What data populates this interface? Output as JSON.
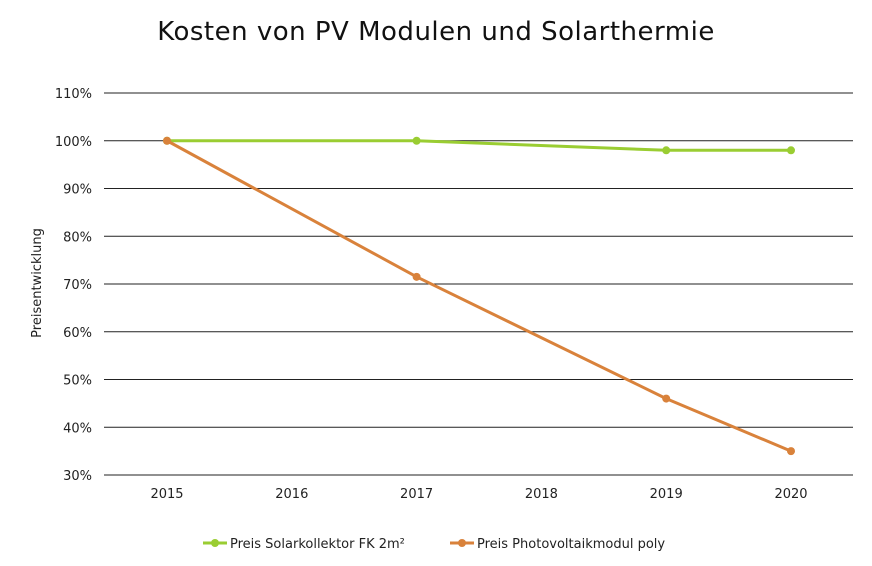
{
  "chart_data": {
    "type": "line",
    "title": "Kosten von PV Modulen und Solarthermie",
    "xlabel": "",
    "ylabel": "Preisentwicklung",
    "categories": [
      "2015",
      "2016",
      "2017",
      "2018",
      "2019",
      "2020"
    ],
    "ylim": [
      30,
      110
    ],
    "ytick_step": 10,
    "ytick_labels": [
      "30%",
      "40%",
      "50%",
      "60%",
      "70%",
      "80%",
      "90%",
      "100%",
      "110%"
    ],
    "grid": true,
    "legend_position": "bottom",
    "series": [
      {
        "name": "Preis Solarkollektor FK 2m²",
        "color": "#9ACD32",
        "points": [
          {
            "x": "2015",
            "y": 100
          },
          {
            "x": "2017",
            "y": 100
          },
          {
            "x": "2019",
            "y": 98
          },
          {
            "x": "2020",
            "y": 98
          }
        ]
      },
      {
        "name": "Preis Photovoltaikmodul poly",
        "color": "#D9823B",
        "points": [
          {
            "x": "2015",
            "y": 100
          },
          {
            "x": "2017",
            "y": 71.5
          },
          {
            "x": "2019",
            "y": 46
          },
          {
            "x": "2020",
            "y": 35
          }
        ]
      }
    ]
  }
}
